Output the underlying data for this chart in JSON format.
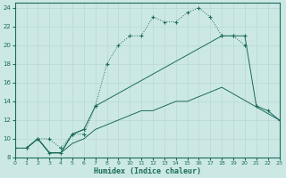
{
  "xlabel": "Humidex (Indice chaleur)",
  "bg_color": "#cce8e5",
  "grid_color": "#b8d8d4",
  "line_color": "#1a6b5a",
  "xlim": [
    0,
    23
  ],
  "ylim": [
    8,
    24.5
  ],
  "xticks": [
    0,
    1,
    2,
    3,
    4,
    5,
    6,
    7,
    8,
    9,
    10,
    11,
    12,
    13,
    14,
    15,
    16,
    17,
    18,
    19,
    20,
    21,
    22,
    23
  ],
  "yticks": [
    8,
    10,
    12,
    14,
    16,
    18,
    20,
    22,
    24
  ],
  "curve_top_x": [
    0,
    1,
    2,
    3,
    4,
    5,
    6,
    7,
    8,
    9,
    10,
    11,
    12,
    13,
    14,
    15,
    16,
    17,
    18,
    19,
    20
  ],
  "curve_top_y": [
    9,
    9,
    10,
    10,
    9,
    10.5,
    10.5,
    13.5,
    18,
    20,
    21,
    21,
    23,
    22.5,
    22.5,
    23.5,
    24,
    23,
    21,
    21,
    20
  ],
  "curve_mid_x": [
    0,
    1,
    2,
    3,
    4,
    5,
    6,
    7,
    18,
    19,
    20,
    21,
    22,
    23
  ],
  "curve_mid_y": [
    9,
    9,
    10,
    8.5,
    8.5,
    10.5,
    11,
    13.5,
    21,
    21,
    21,
    13.5,
    13,
    12
  ],
  "curve_diag_x": [
    0,
    1,
    2,
    3,
    4,
    5,
    6,
    7,
    8,
    9,
    10,
    11,
    12,
    13,
    14,
    15,
    16,
    17,
    18,
    23
  ],
  "curve_diag_y": [
    9,
    9,
    10,
    8.5,
    8.5,
    9.5,
    10,
    11,
    11.5,
    12,
    12.5,
    13,
    13,
    13.5,
    14,
    14,
    14.5,
    15,
    15.5,
    12
  ],
  "curve_seg_x": [
    0,
    1,
    2,
    3,
    4,
    5,
    6
  ],
  "curve_seg_y": [
    9,
    9,
    10,
    8.5,
    8.5,
    10.5,
    11
  ]
}
